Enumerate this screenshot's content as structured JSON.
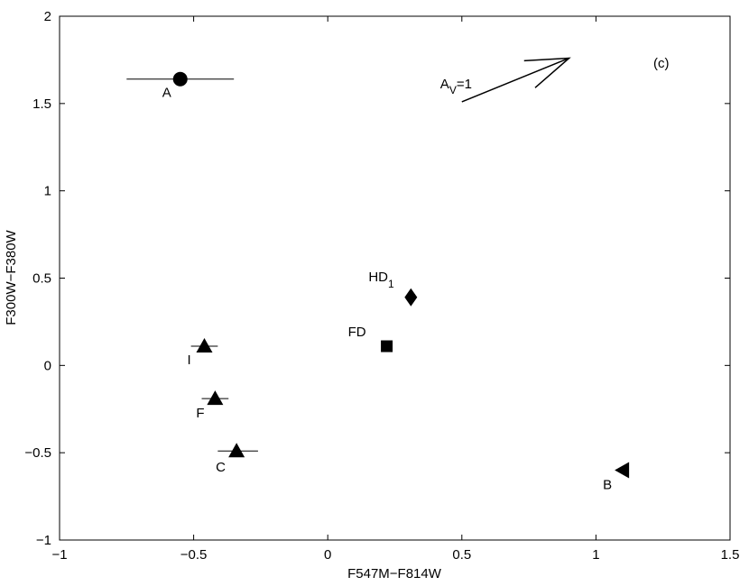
{
  "chart_data": {
    "type": "scatter",
    "title": "",
    "xlabel": "F547M−F814W",
    "ylabel": "F300W−F380W",
    "xlim": [
      -1,
      1.5
    ],
    "ylim": [
      -1,
      2
    ],
    "xticks": [
      -1,
      -0.5,
      0,
      0.5,
      1,
      1.5
    ],
    "xtick_labels": [
      "−1",
      "−0.5",
      "0",
      "0.5",
      "1",
      "1.5"
    ],
    "yticks": [
      -1,
      -0.5,
      0,
      0.5,
      1,
      1.5,
      2
    ],
    "ytick_labels": [
      "−1",
      "−0.5",
      "0",
      "0.5",
      "1",
      "1.5",
      "2"
    ],
    "grid": false,
    "panel_label": "(c)",
    "points": [
      {
        "label": "A",
        "x": -0.55,
        "y": 1.64,
        "marker": "circle",
        "xerr": [
          0.2,
          0.2
        ]
      },
      {
        "label": "I",
        "x": -0.46,
        "y": 0.11,
        "marker": "triangle-up",
        "xerr": [
          0.05,
          0.05
        ]
      },
      {
        "label": "F",
        "x": -0.42,
        "y": -0.19,
        "marker": "triangle-up",
        "xerr": [
          0.05,
          0.05
        ]
      },
      {
        "label": "C",
        "x": -0.34,
        "y": -0.49,
        "marker": "triangle-up",
        "xerr": [
          0.07,
          0.08
        ]
      },
      {
        "label": "FD",
        "x": 0.22,
        "y": 0.11,
        "marker": "square"
      },
      {
        "label": "HD",
        "sub": "1",
        "x": 0.31,
        "y": 0.39,
        "marker": "diamond"
      },
      {
        "label": "B",
        "x": 1.1,
        "y": -0.6,
        "marker": "triangle-left"
      }
    ],
    "arrow": {
      "label": "A",
      "sub": "V",
      "suffix": "=1",
      "from": [
        0.5,
        1.51
      ],
      "to": [
        0.9,
        1.76
      ]
    }
  }
}
